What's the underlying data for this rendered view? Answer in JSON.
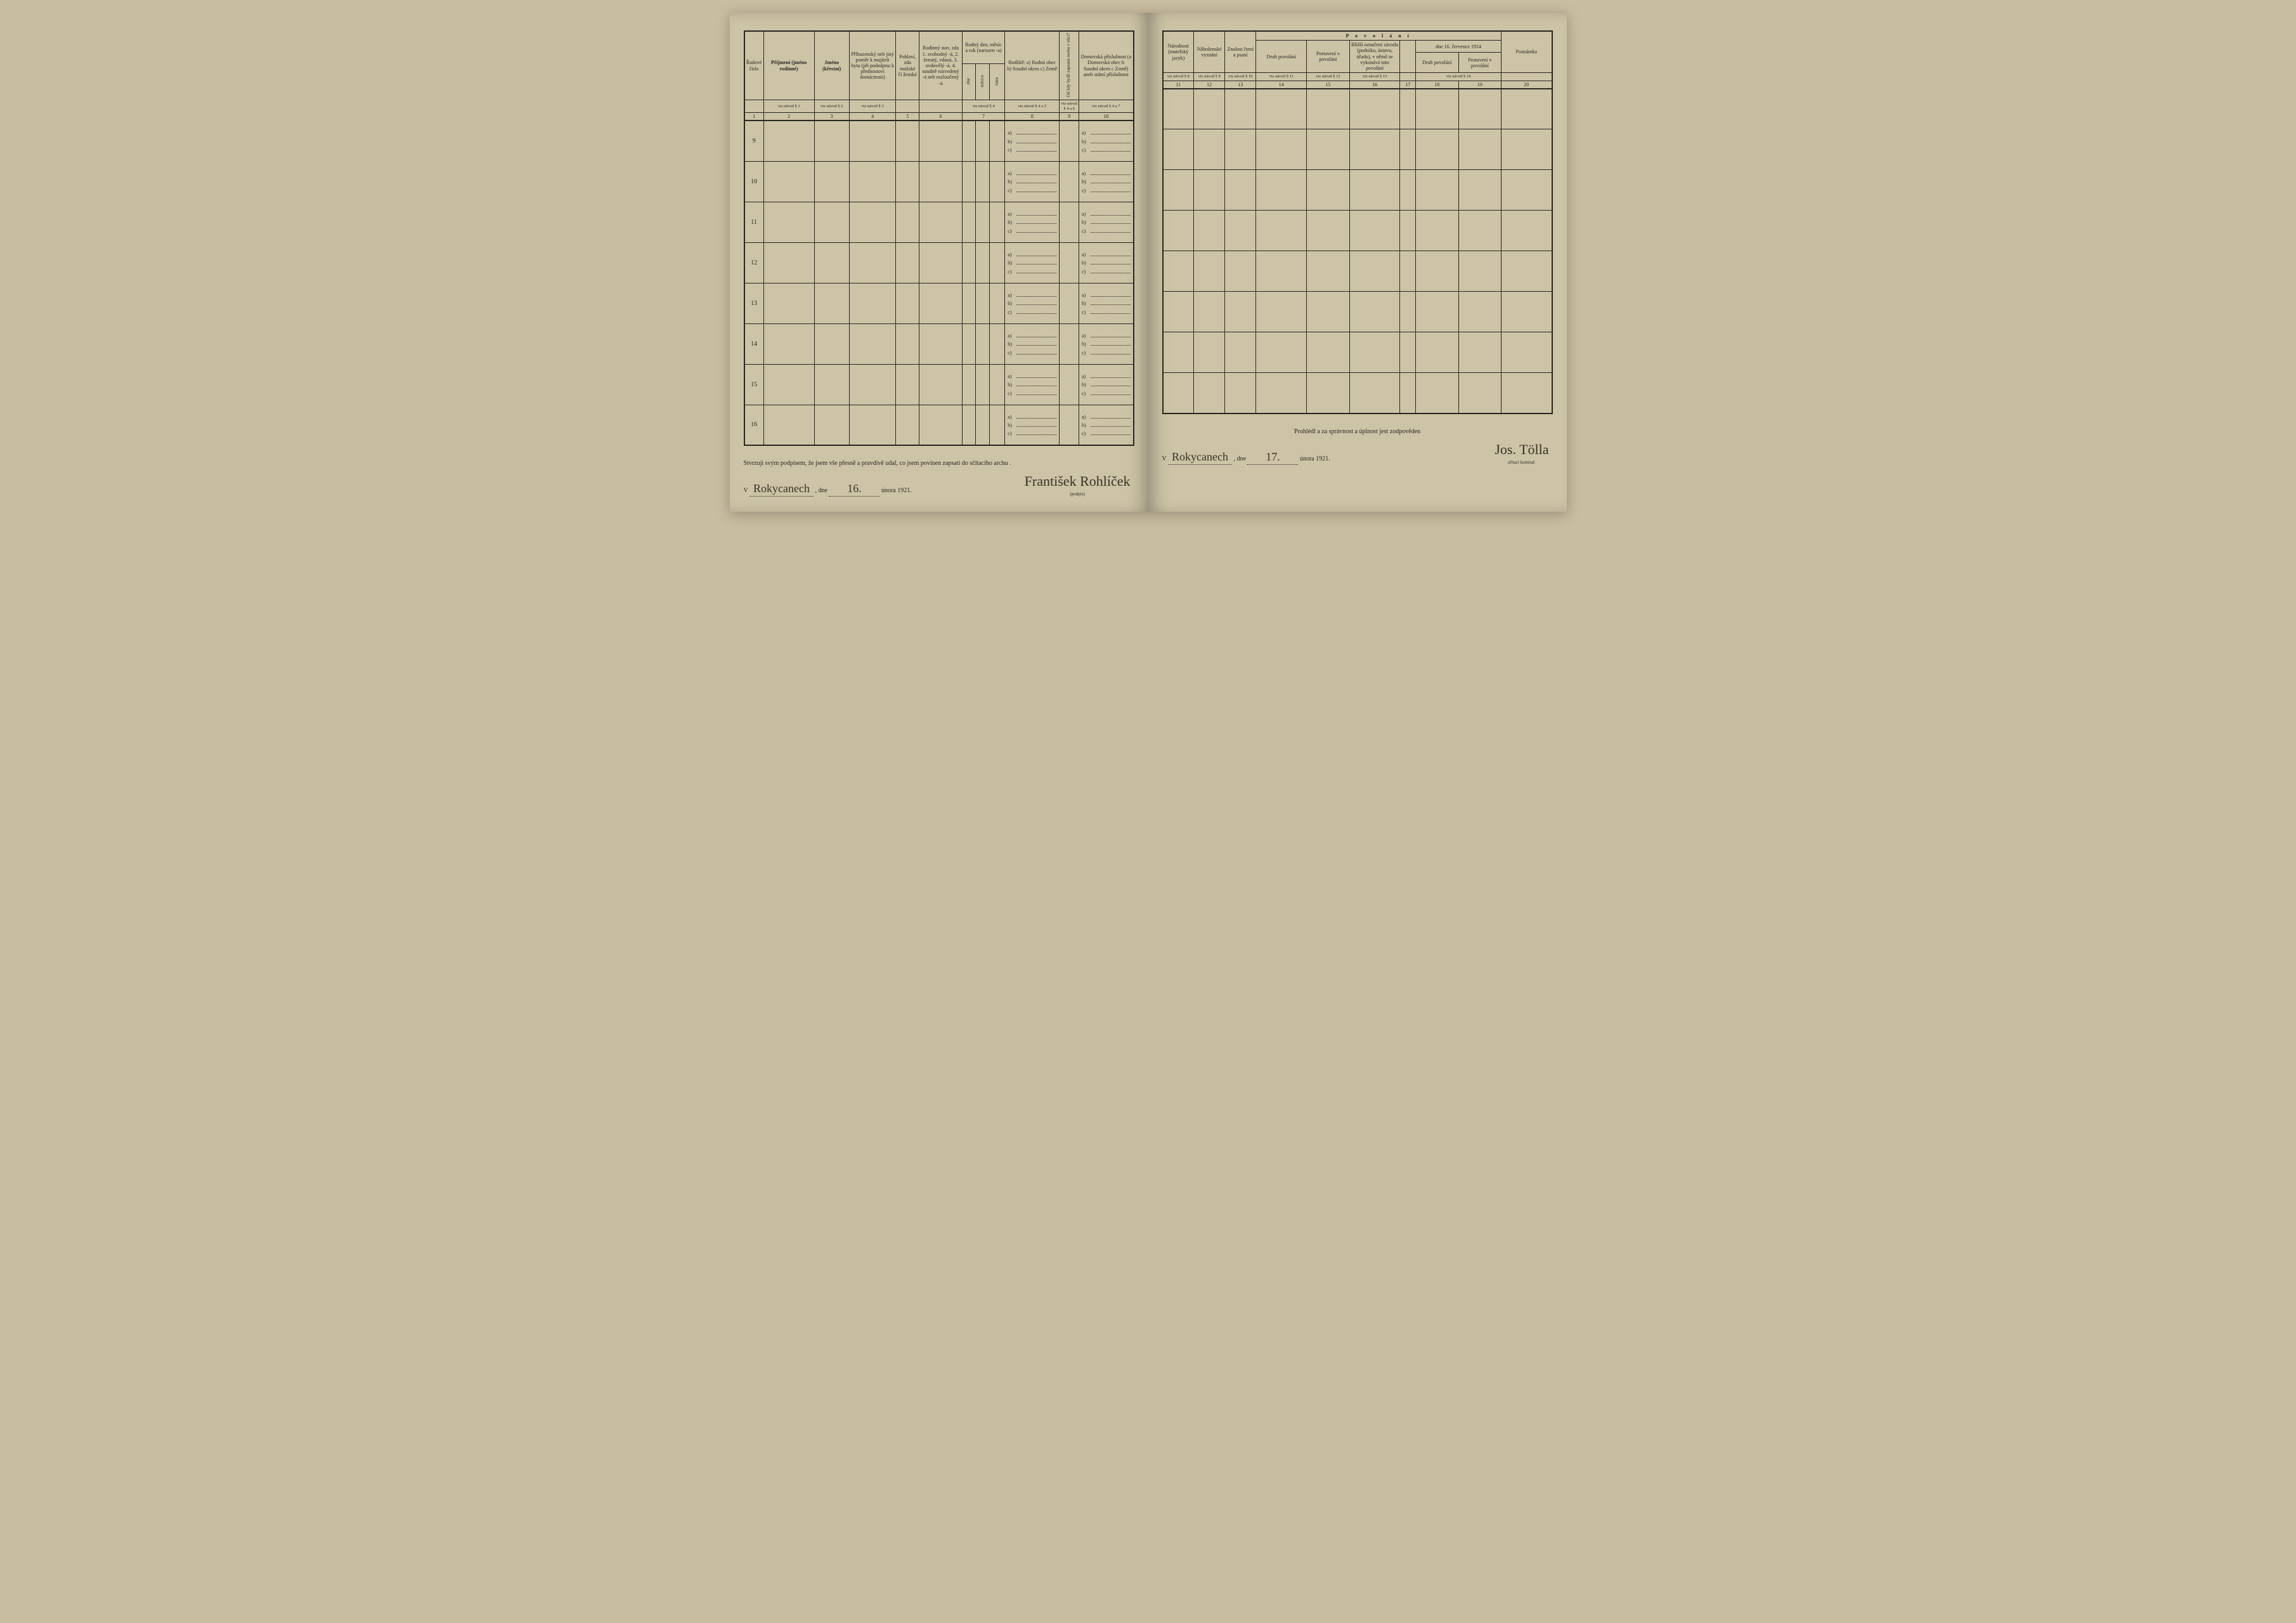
{
  "left": {
    "headers": {
      "c1": "Řadové číslo",
      "c2": "Příjmení (jméno rodinné)",
      "c3": "Jméno (křestní)",
      "c4": "Příbuzenský neb jiný poměr k majiteli bytu (při podnájmu k přednostovi domácnosti)",
      "c5": "Pohlaví, zda mužské či ženské",
      "c6": "Rodinný stav, zda 1. svobodný -á, 2. ženatý, vdaná, 3. ovdovělý -á, 4. soudně rozvedený -á neb rozloučený -á",
      "c7_top": "Rodný den, měsíc a rok (narozen -a)",
      "c7_a": "dne",
      "c7_b": "měsíce",
      "c7_c": "roku",
      "c8": "Rodiště: a) Rodná obec b) Soudní okres c) Země",
      "c9": "Od kdy bydlí zapsaná osoba v obci?",
      "c10": "Domovská příslušnost (a Domovská obec b Soudní okres c Země) aneb státní příslušnost"
    },
    "ref": {
      "c1": "",
      "c2": "viz návod § 1",
      "c3": "viz návod § 2",
      "c4": "viz návod § 3",
      "c5": "",
      "c6": "",
      "c7": "viz návod § 4",
      "c8": "viz návod § 4 a 5",
      "c9": "viz návod § 4 a 6",
      "c10": "viz návod § 4 a 7"
    },
    "nums": [
      "1",
      "2",
      "3",
      "4",
      "5",
      "6",
      "7",
      "8",
      "9",
      "10"
    ],
    "row_numbers": [
      "9",
      "10",
      "11",
      "12",
      "13",
      "14",
      "15",
      "16"
    ],
    "abc_labels": [
      "a)",
      "b)",
      "c)"
    ],
    "footer": {
      "affirm": "Stvrzuji svým podpisem, že jsem vše přesně a pravdivě udal, co jsem povinen zapsati do sčítacího archu .",
      "v": "V",
      "place": "Rokycanech",
      "dne": ", dne",
      "day": "16.",
      "month_year": "února 1921.",
      "signature": "František Rohlíček",
      "sig_caption": "(podpis)"
    }
  },
  "right": {
    "headers": {
      "c11": "Národnost (mateřský jazyk)",
      "c12": "Náboženské vyznání",
      "c13": "Znalost čtení a psaní",
      "povolani": "P o v o l á n í",
      "c14": "Druh povolání",
      "c15": "Postavení v povolání",
      "c16": "Bližší označení závodu (podniku, ústavu, úřadu), v němž se vykonává toto povolání",
      "c17": "",
      "c18_19_top": "dne 16. července 1914",
      "c18": "Druh povolání",
      "c19": "Postavení v povolání",
      "c20": "Poznámka"
    },
    "ref": {
      "c11": "viz návod § 8",
      "c12": "viz návod § 9",
      "c13": "viz návod § 10",
      "c14": "viz návod § 11",
      "c15": "viz návod § 12",
      "c16": "viz návod § 13",
      "c17": "",
      "c18_19": "viz návod § 14",
      "c20": ""
    },
    "nums": [
      "11",
      "12",
      "13",
      "14",
      "15",
      "16",
      "17",
      "18",
      "19",
      "20"
    ],
    "footer": {
      "affirm": "Prohlédl a za správnost a úplnost jest zodpověden",
      "v": "V",
      "place": "Rokycanech",
      "dne": ", dne",
      "day": "17.",
      "month_year": "února 1921.",
      "signature": "Jos. Tölla",
      "sig_caption": "sčítací komisař."
    }
  },
  "style": {
    "paper_color": "#cdc3a6",
    "ink_color": "#2a2620",
    "body_font": "Times New Roman",
    "script_font": "Brush Script MT"
  }
}
